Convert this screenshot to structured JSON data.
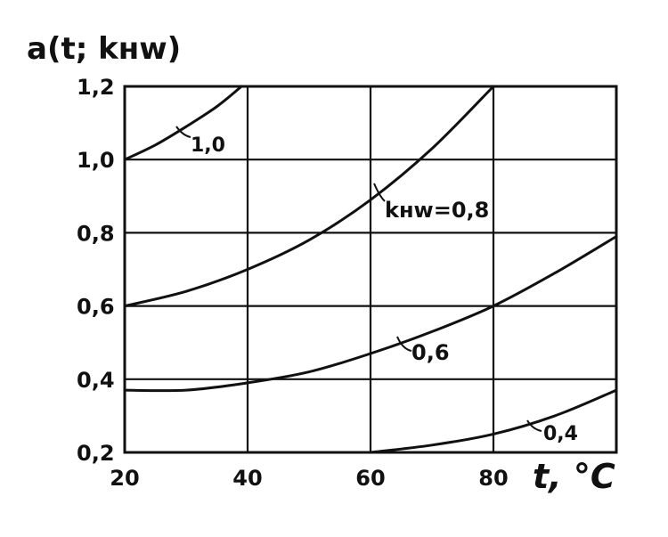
{
  "chart_data": {
    "type": "line",
    "ylabel": "a(t; kнw)",
    "xlabel": "t, °C",
    "xlim": [
      20,
      100
    ],
    "ylim": [
      0.2,
      1.2
    ],
    "x_ticks": [
      "20",
      "40",
      "60",
      "80"
    ],
    "y_ticks": [
      "0,2",
      "0,4",
      "0,6",
      "0,8",
      "1,0",
      "1,2"
    ],
    "grid": true,
    "series": [
      {
        "name": "1,0",
        "x": [
          20,
          25,
          30,
          35,
          39
        ],
        "y": [
          1.0,
          1.04,
          1.09,
          1.145,
          1.2
        ]
      },
      {
        "name": "kнw=0,8",
        "x": [
          20,
          30,
          40,
          50,
          60,
          70,
          80
        ],
        "y": [
          0.6,
          0.64,
          0.7,
          0.78,
          0.89,
          1.03,
          1.2
        ]
      },
      {
        "name": "0,6",
        "x": [
          20,
          30,
          40,
          50,
          60,
          70,
          80,
          90,
          100
        ],
        "y": [
          0.37,
          0.37,
          0.39,
          0.42,
          0.47,
          0.53,
          0.6,
          0.69,
          0.79
        ]
      },
      {
        "name": "0,4",
        "x": [
          60,
          70,
          80,
          90,
          100
        ],
        "y": [
          0.2,
          0.22,
          0.25,
          0.3,
          0.37
        ]
      }
    ]
  }
}
